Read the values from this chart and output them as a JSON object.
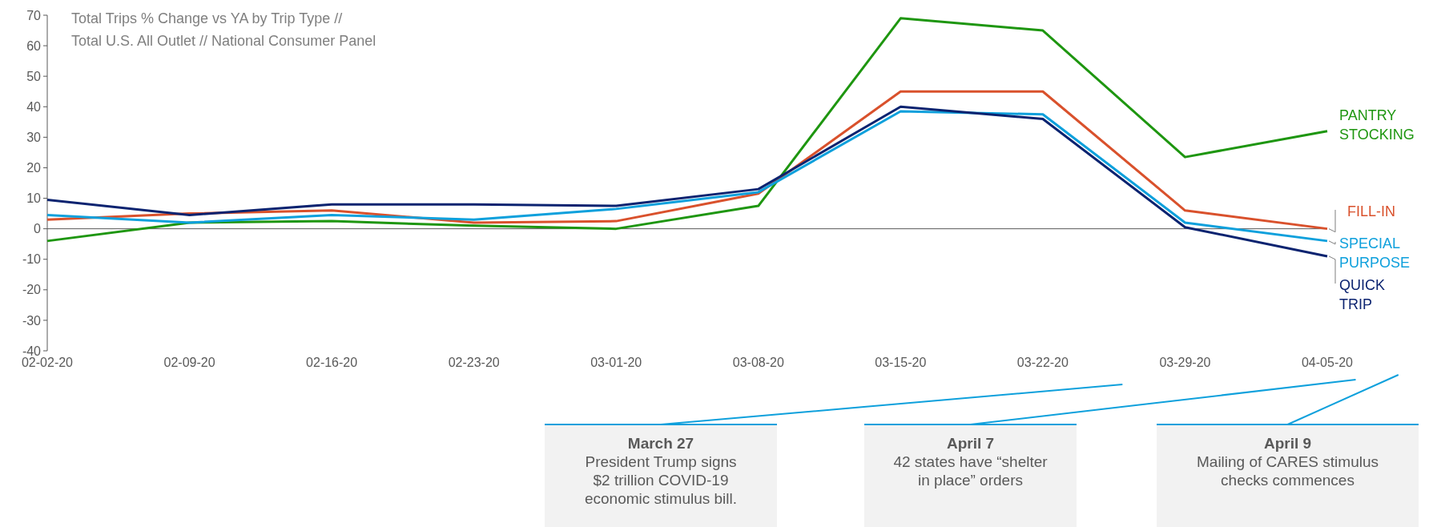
{
  "chart_data": {
    "type": "line",
    "title": "Total Trips % Change vs YA by Trip Type //",
    "subtitle": "Total U.S. All Outlet // National Consumer Panel",
    "categories": [
      "02-02-20",
      "02-09-20",
      "02-16-20",
      "02-23-20",
      "03-01-20",
      "03-08-20",
      "03-15-20",
      "03-22-20",
      "03-29-20",
      "04-05-20"
    ],
    "series": [
      {
        "name": "PANTRY STOCKING",
        "color": "#1e9610",
        "values": [
          -4,
          2,
          2.5,
          1,
          0,
          7.5,
          69,
          65,
          23.5,
          32
        ]
      },
      {
        "name": "FILL-IN",
        "color": "#d9512c",
        "values": [
          3,
          5,
          6,
          2,
          2.5,
          11.5,
          45,
          45,
          6,
          0
        ]
      },
      {
        "name": "SPECIAL PURPOSE",
        "color": "#0ea0dc",
        "values": [
          4.5,
          2,
          4.5,
          3,
          6.5,
          12,
          38.5,
          37.5,
          2,
          -4
        ]
      },
      {
        "name": "QUICK TRIP",
        "color": "#0b2370",
        "values": [
          9.5,
          4.5,
          8,
          8,
          7.5,
          13,
          40,
          36,
          0.5,
          -9
        ]
      }
    ],
    "ylim": [
      -40,
      70
    ],
    "yticks": [
      -40,
      -30,
      -20,
      -10,
      0,
      10,
      20,
      30,
      40,
      50,
      60,
      70
    ],
    "ref_lines": [
      {
        "axis": "y",
        "value": 0,
        "color": "#595959"
      }
    ],
    "grid": false,
    "legend": false,
    "annotations": [
      "March 27\nPresident Trump signs\n$2 trillion COVID-19\neconomic stimulus bill.",
      "April 7\n42 states have “shelter\nin place” orders",
      "April 9\nMailing of CARES stimulus\nchecks commences"
    ]
  }
}
